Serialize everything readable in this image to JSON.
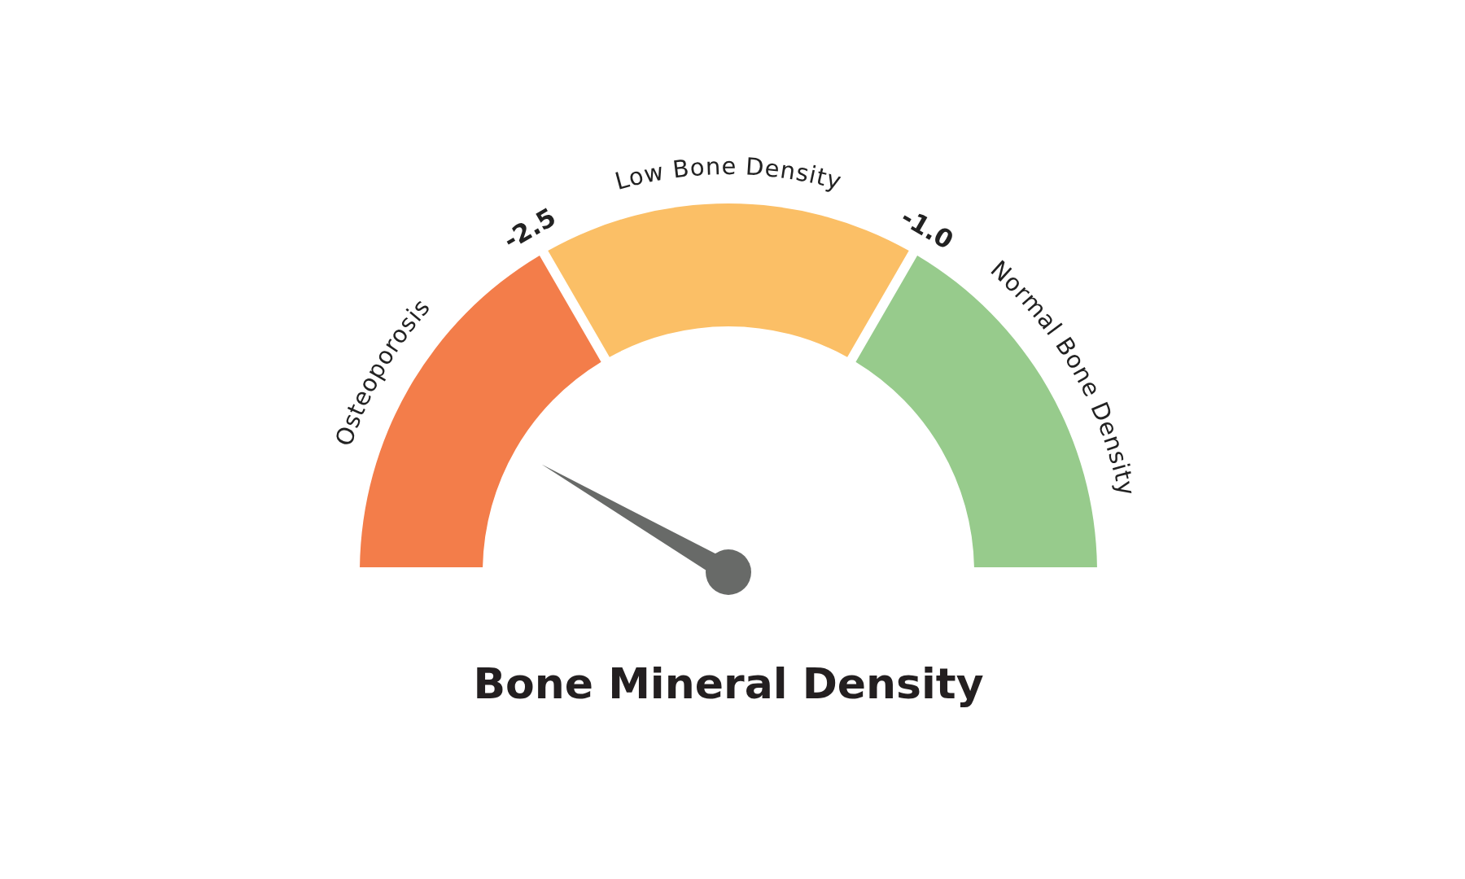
{
  "chart_data": {
    "type": "donut",
    "title": "Bone Mineral Density",
    "categories": [
      "Osteoporosis",
      "Low Bone Density",
      "Normal Bone Density"
    ],
    "values": [
      33.3,
      33.4,
      33.3
    ],
    "colors": [
      "#f37d4a",
      "#fbbf66",
      "#97cb8c"
    ],
    "needle": "Osteoporosis",
    "annotations": [
      "-2.5",
      "-1.0"
    ]
  }
}
